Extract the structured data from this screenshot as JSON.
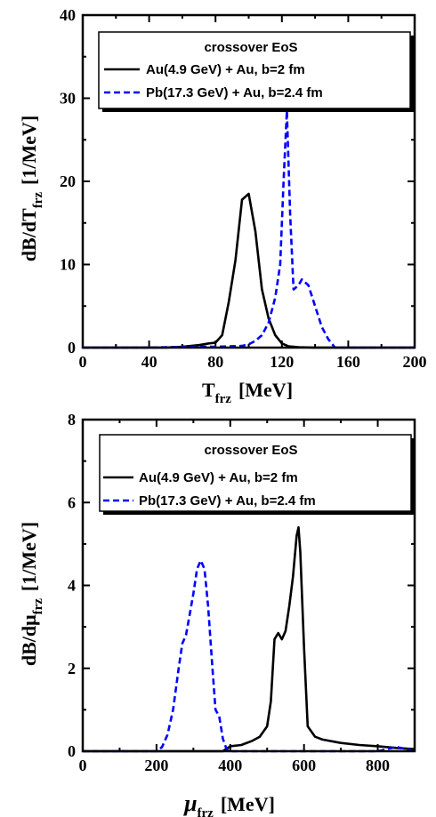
{
  "chart_data": [
    {
      "type": "line",
      "xlabel": {
        "main": "T",
        "sub": "frz",
        "unit": "[MeV]"
      },
      "ylabel": {
        "main": "dB/dT",
        "sub": "frz",
        "unit": "[1/MeV]"
      },
      "xlim": [
        0,
        200
      ],
      "ylim": [
        0,
        40
      ],
      "xticks": [
        0,
        40,
        80,
        120,
        160,
        200
      ],
      "yticks": [
        0,
        10,
        20,
        30,
        40
      ],
      "xtick_labels": [
        "0",
        "40",
        "80",
        "120",
        "160",
        "200"
      ],
      "ytick_labels": [
        "0",
        "10",
        "20",
        "30",
        "40"
      ],
      "legend": {
        "title": "crossover EoS",
        "position": "top-right"
      },
      "series": [
        {
          "name": "Au(4.9 GeV) + Au, b=2 fm",
          "color": "#000000",
          "style": "solid",
          "x": [
            0,
            50,
            60,
            70,
            76,
            80,
            84,
            88,
            92,
            96,
            100,
            104,
            108,
            112,
            116,
            120,
            124,
            130,
            140,
            160,
            200
          ],
          "y": [
            0,
            0,
            0.1,
            0.3,
            0.5,
            0.6,
            1.5,
            5.5,
            10.5,
            17.8,
            18.5,
            14,
            7,
            3.5,
            1.5,
            0.5,
            0.15,
            0.05,
            0,
            0,
            0
          ]
        },
        {
          "name": "Pb(17.3 GeV) + Au, b=2.4 fm",
          "color": "#0000ff",
          "style": "dashed",
          "x": [
            0,
            40,
            60,
            80,
            96,
            100,
            104,
            108,
            112,
            116,
            119,
            121,
            123,
            125,
            127,
            130,
            132,
            136,
            140,
            144,
            148,
            152,
            160,
            200
          ],
          "y": [
            0,
            0,
            0.1,
            0.1,
            0.2,
            0.4,
            0.8,
            1.5,
            3,
            6,
            10,
            20,
            28.5,
            16,
            7,
            7.5,
            8.2,
            7.5,
            5,
            2.5,
            1,
            0,
            0,
            0
          ]
        }
      ]
    },
    {
      "type": "line",
      "xlabel": {
        "main": "μ",
        "sub": "frz",
        "unit": "[MeV]"
      },
      "ylabel": {
        "main": "dB/dμ",
        "sub": "frz",
        "unit": "[1/MeV]"
      },
      "xlim": [
        0,
        900
      ],
      "ylim": [
        0,
        8
      ],
      "xticks": [
        0,
        200,
        400,
        600,
        800
      ],
      "yticks": [
        0,
        2,
        4,
        6,
        8
      ],
      "xtick_labels": [
        "0",
        "200",
        "400",
        "600",
        "800"
      ],
      "ytick_labels": [
        "0",
        "2",
        "4",
        "6",
        "8"
      ],
      "legend": {
        "title": "crossover EoS",
        "position": "top-right"
      },
      "series": [
        {
          "name": "Au(4.9 GeV) + Au, b=2 fm",
          "color": "#000000",
          "style": "solid",
          "x": [
            0,
            380,
            400,
            430,
            460,
            480,
            500,
            510,
            520,
            530,
            540,
            550,
            560,
            570,
            580,
            585,
            590,
            600,
            610,
            630,
            650,
            700,
            750,
            800,
            850,
            900
          ],
          "y": [
            0,
            0,
            0.12,
            0.15,
            0.25,
            0.35,
            0.6,
            1.2,
            2.7,
            2.85,
            2.7,
            2.9,
            3.5,
            4.2,
            5.2,
            5.4,
            4.8,
            2.5,
            0.6,
            0.35,
            0.28,
            0.2,
            0.15,
            0.12,
            0.08,
            0.05
          ]
        },
        {
          "name": "Pb(17.3 GeV) + Au, b=2.4 fm",
          "color": "#0000ff",
          "style": "dashed",
          "x": [
            0,
            200,
            215,
            230,
            245,
            260,
            270,
            280,
            290,
            300,
            310,
            320,
            330,
            340,
            350,
            360,
            370,
            380,
            390,
            400,
            500,
            600,
            700,
            800,
            850,
            880,
            900
          ],
          "y": [
            0,
            0,
            0.1,
            0.4,
            1.0,
            2.0,
            2.6,
            2.8,
            3.3,
            3.8,
            4.4,
            4.6,
            4.4,
            3.5,
            2.2,
            1.0,
            0.85,
            0.3,
            0.05,
            0,
            0,
            0,
            0,
            0,
            0.1,
            0.05,
            0
          ]
        }
      ]
    }
  ]
}
